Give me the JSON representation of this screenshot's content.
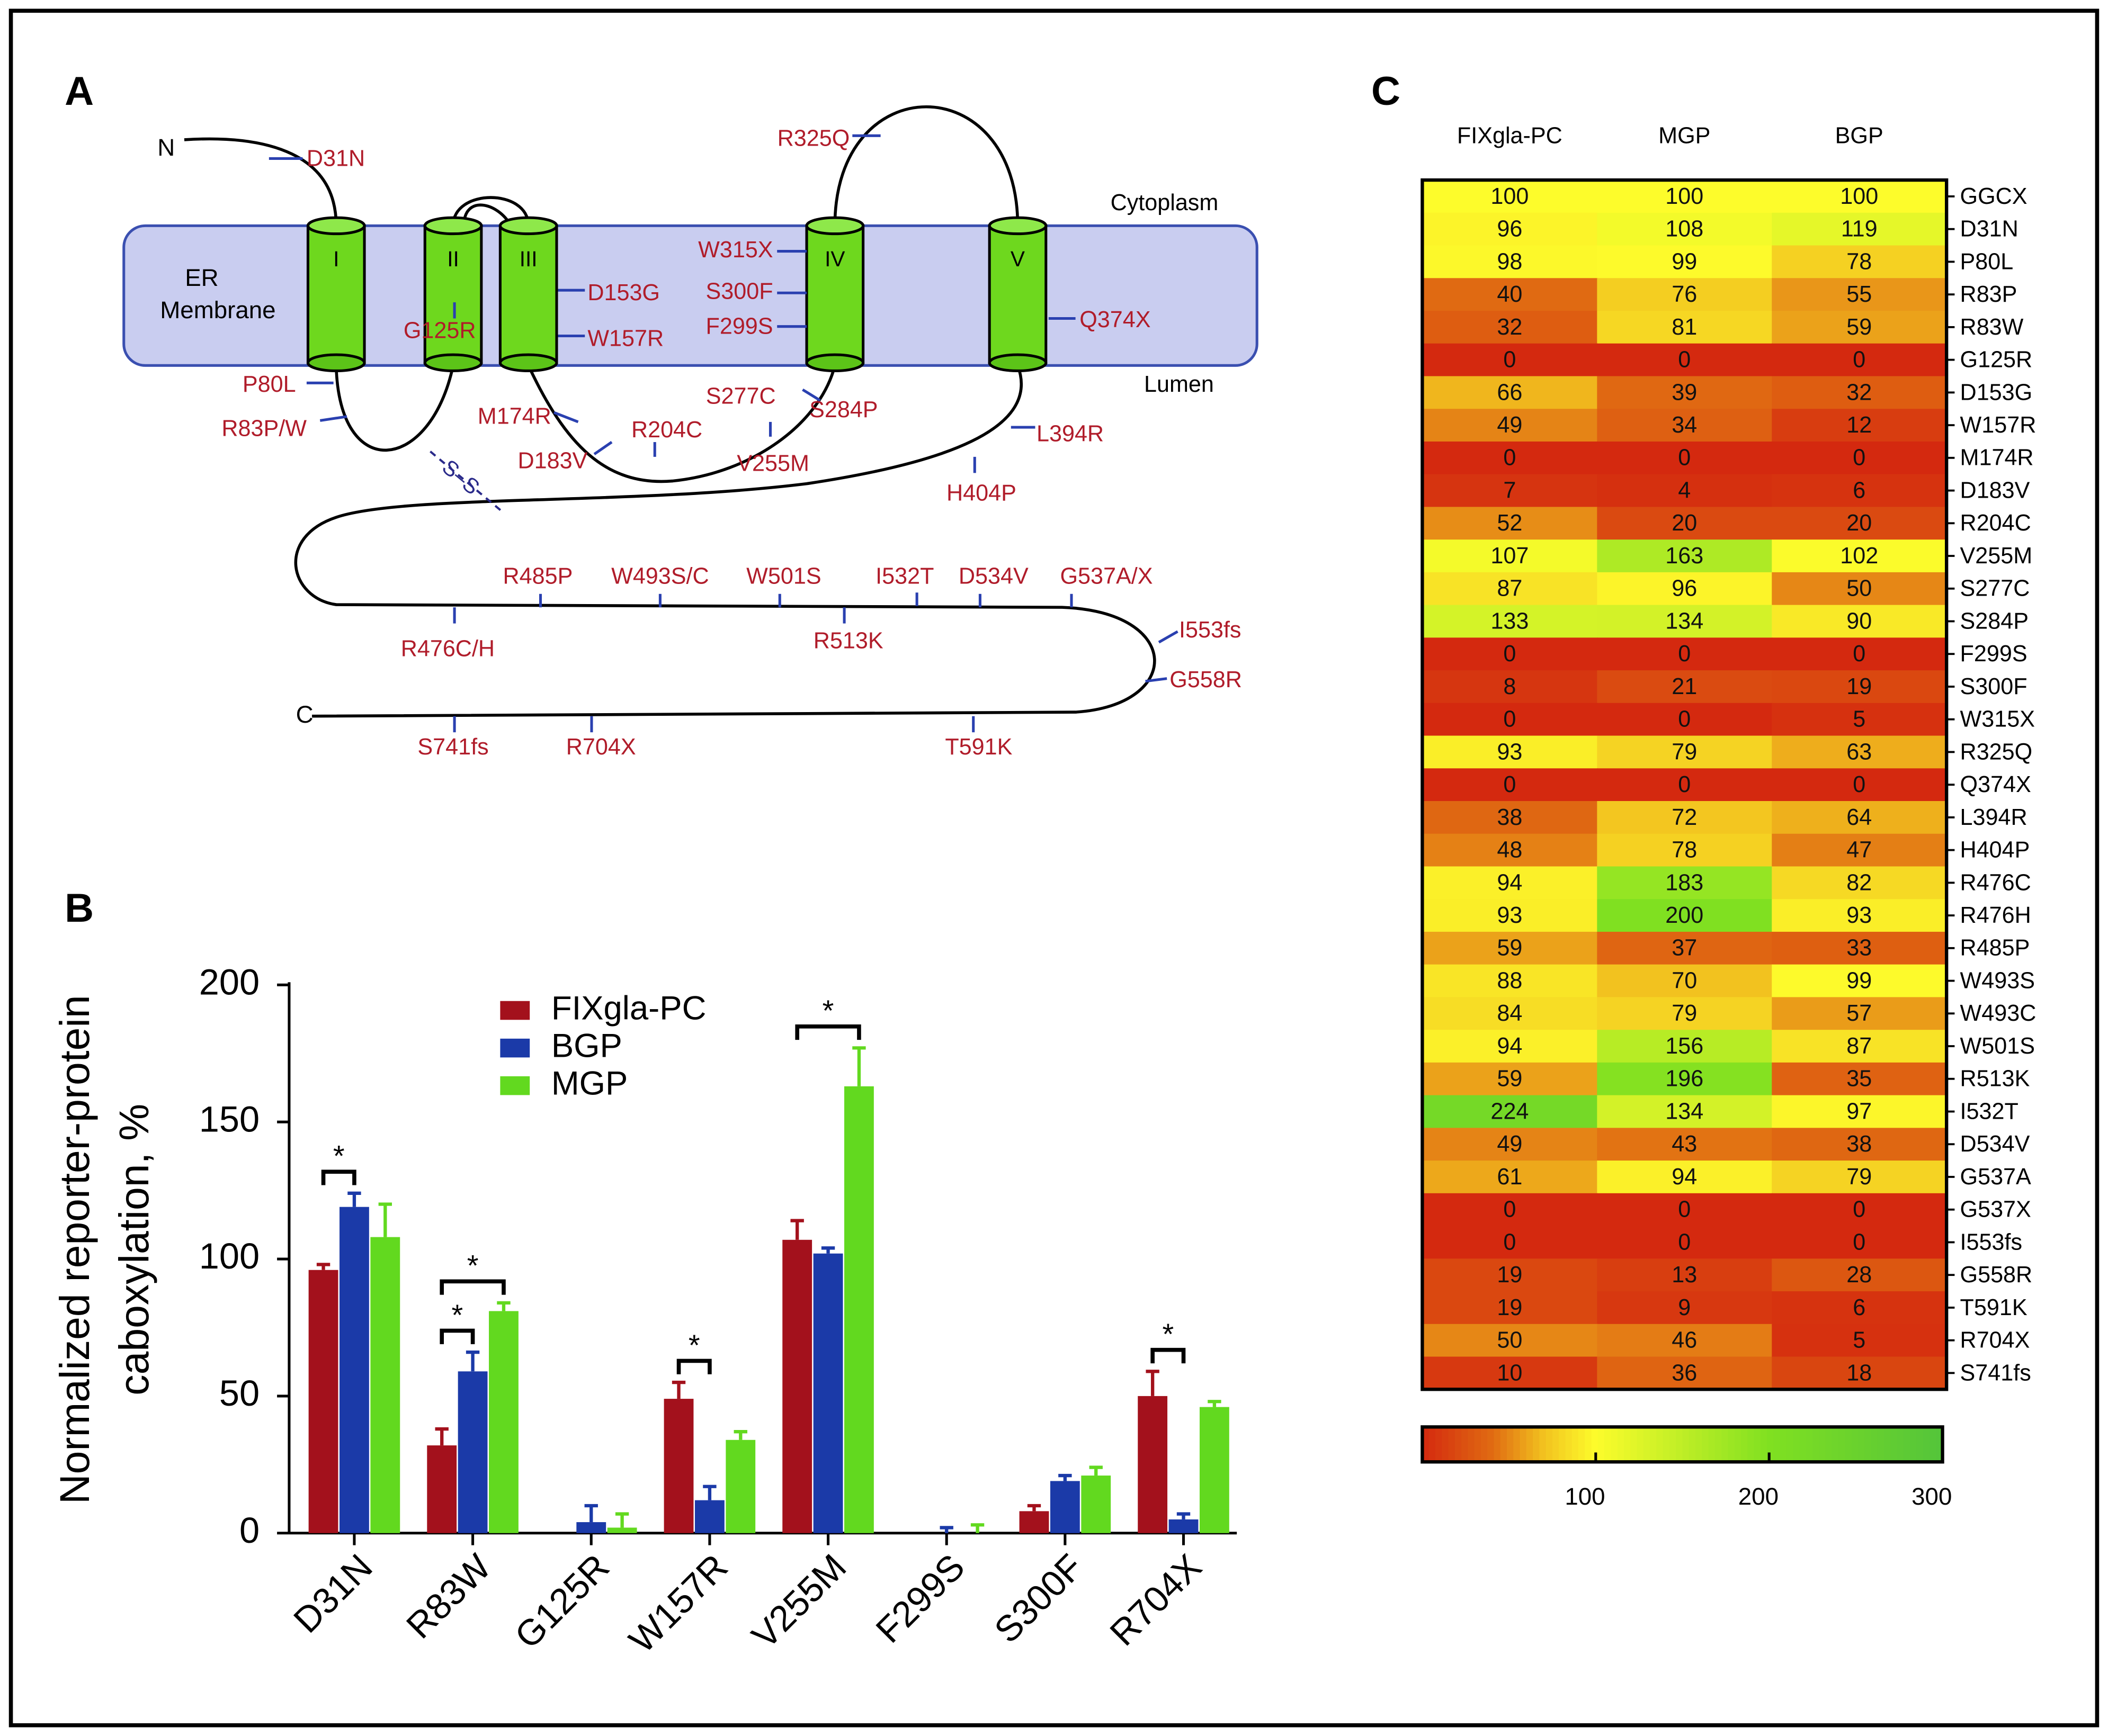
{
  "diagram": {
    "panel_label": "A",
    "n_terminus": "N",
    "c_terminus": "C",
    "membrane_label": [
      "ER",
      "Membrane"
    ],
    "cytoplasm": "Cytoplasm",
    "lumen": "Lumen",
    "helices": [
      "I",
      "II",
      "III",
      "IV",
      "V"
    ],
    "disulfide": "S–S",
    "mutations": [
      "D31N",
      "R325Q",
      "W315X",
      "S300F",
      "F299S",
      "D153G",
      "W157R",
      "G125R",
      "Q374X",
      "P80L",
      "R83P/W",
      "M174R",
      "R204C",
      "S277C",
      "S284P",
      "D183V",
      "V255M",
      "L394R",
      "H404P",
      "R485P",
      "W493S/C",
      "W501S",
      "I532T",
      "D534V",
      "G537A/X",
      "R476C/H",
      "R513K",
      "I553fs",
      "G558R",
      "S741fs",
      "R704X",
      "T591K"
    ]
  },
  "chart_data": [
    {
      "type": "bar",
      "panel_label": "B",
      "ylabel": [
        "Normalized reporter-protein",
        "caboxylation, %"
      ],
      "categories": [
        "D31N",
        "R83W",
        "G125R",
        "W157R",
        "V255M",
        "F299S",
        "S300F",
        "R704X"
      ],
      "series": [
        {
          "name": "FIXgla-PC",
          "color": "#a3111c",
          "values": [
            96,
            32,
            0,
            49,
            107,
            0,
            8,
            50
          ],
          "errors": [
            2,
            6,
            0,
            6,
            7,
            0,
            2,
            9
          ]
        },
        {
          "name": "BGP",
          "color": "#1b3aa8",
          "values": [
            119,
            59,
            4,
            12,
            102,
            0,
            19,
            5
          ],
          "errors": [
            5,
            7,
            6,
            5,
            2,
            2,
            2,
            2
          ]
        },
        {
          "name": "MGP",
          "color": "#62d91f",
          "values": [
            108,
            81,
            2,
            34,
            163,
            0,
            21,
            46
          ],
          "errors": [
            12,
            3,
            5,
            3,
            14,
            3,
            3,
            2
          ]
        }
      ],
      "ylim": [
        0,
        200
      ],
      "yticks": [
        0,
        50,
        100,
        150,
        200
      ],
      "legend": "top",
      "annotations": [
        {
          "text": "*",
          "category": "D31N",
          "between": [
            "FIXgla-PC",
            "BGP"
          ]
        },
        {
          "text": "*",
          "category": "R83W",
          "between": [
            "FIXgla-PC",
            "BGP"
          ]
        },
        {
          "text": "*",
          "category": "R83W",
          "between": [
            "FIXgla-PC",
            "MGP"
          ]
        },
        {
          "text": "*",
          "category": "W157R",
          "between": [
            "FIXgla-PC",
            "BGP"
          ]
        },
        {
          "text": "*",
          "category": "V255M",
          "between": [
            "FIXgla-PC",
            "MGP"
          ]
        },
        {
          "text": "*",
          "category": "R704X",
          "between": [
            "FIXgla-PC",
            "BGP"
          ]
        }
      ]
    },
    {
      "type": "heatmap",
      "panel_label": "C",
      "x": [
        "FIXgla-PC",
        "MGP",
        "BGP"
      ],
      "y": [
        "GGCX",
        "D31N",
        "P80L",
        "R83P",
        "R83W",
        "G125R",
        "D153G",
        "W157R",
        "M174R",
        "D183V",
        "R204C",
        "V255M",
        "S277C",
        "S284P",
        "F299S",
        "S300F",
        "W315X",
        "R325Q",
        "Q374X",
        "L394R",
        "H404P",
        "R476C",
        "R476H",
        "R485P",
        "W493S",
        "W493C",
        "W501S",
        "R513K",
        "I532T",
        "D534V",
        "G537A",
        "G537X",
        "I553fs",
        "G558R",
        "T591K",
        "R704X",
        "S741fs"
      ],
      "values": [
        [
          100,
          100,
          100
        ],
        [
          96,
          108,
          119
        ],
        [
          98,
          99,
          78
        ],
        [
          40,
          76,
          55
        ],
        [
          32,
          81,
          59
        ],
        [
          0,
          0,
          0
        ],
        [
          66,
          39,
          32
        ],
        [
          49,
          34,
          12
        ],
        [
          0,
          0,
          0
        ],
        [
          7,
          4,
          6
        ],
        [
          52,
          20,
          20
        ],
        [
          107,
          163,
          102
        ],
        [
          87,
          96,
          50
        ],
        [
          133,
          134,
          90
        ],
        [
          0,
          0,
          0
        ],
        [
          8,
          21,
          19
        ],
        [
          0,
          0,
          5
        ],
        [
          93,
          79,
          63
        ],
        [
          0,
          0,
          0
        ],
        [
          38,
          72,
          64
        ],
        [
          48,
          78,
          47
        ],
        [
          94,
          183,
          82
        ],
        [
          93,
          200,
          93
        ],
        [
          59,
          37,
          33
        ],
        [
          88,
          70,
          99
        ],
        [
          84,
          79,
          57
        ],
        [
          94,
          156,
          87
        ],
        [
          59,
          196,
          35
        ],
        [
          224,
          134,
          97
        ],
        [
          49,
          43,
          38
        ],
        [
          61,
          94,
          79
        ],
        [
          0,
          0,
          0
        ],
        [
          0,
          0,
          0
        ],
        [
          19,
          13,
          28
        ],
        [
          19,
          9,
          6
        ],
        [
          50,
          46,
          5
        ],
        [
          10,
          36,
          18
        ]
      ],
      "zlim": [
        0,
        300
      ],
      "colorbar_ticks": [
        100,
        200,
        300
      ],
      "colorscale": [
        [
          0,
          "#d4290f"
        ],
        [
          40,
          "#e06a12"
        ],
        [
          70,
          "#f2c21f"
        ],
        [
          100,
          "#fdfc2b"
        ],
        [
          200,
          "#80e021"
        ],
        [
          300,
          "#54c43a"
        ]
      ]
    }
  ]
}
